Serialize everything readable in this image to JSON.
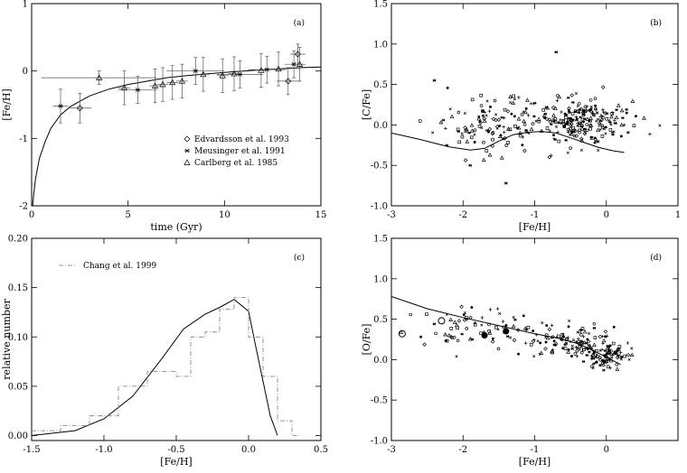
{
  "chart_data": [
    {
      "id": "a",
      "type": "scatter",
      "panel_label": "(a)",
      "xlabel": "time (Gyr)",
      "ylabel": "[Fe/H]",
      "xlim": [
        0,
        15
      ],
      "ylim": [
        -2,
        1
      ],
      "xticks": [
        0,
        5,
        10,
        15
      ],
      "yticks": [
        -2,
        -1,
        0,
        1
      ],
      "legend_position": "bottom-right",
      "series": [
        {
          "name": "Edvardsson et al. 1993",
          "marker": "diamond",
          "points": [
            [
              2.5,
              -0.55
            ],
            [
              13.3,
              -0.15
            ],
            [
              13.8,
              0.25
            ]
          ],
          "xerr": [
            0.6,
            0.6,
            0.4
          ],
          "yerr": [
            0.22,
            0.2,
            0.15
          ]
        },
        {
          "name": "Meusinger et al. 1991",
          "marker": "asterisk",
          "points": [
            [
              1.5,
              -0.52
            ],
            [
              5.5,
              -0.28
            ],
            [
              8.5,
              0.0
            ],
            [
              10.8,
              -0.05
            ],
            [
              12.2,
              0.02
            ],
            [
              13.6,
              0.1
            ]
          ],
          "xerr": [
            0.4,
            1.0,
            1.5,
            1.2,
            1.0,
            0.5
          ],
          "yerr": [
            0.25,
            0.2,
            0.2,
            0.2,
            0.2,
            0.2
          ]
        },
        {
          "name": "Carlberg et al. 1985",
          "marker": "triangle",
          "points": [
            [
              3.5,
              -0.1
            ],
            [
              4.8,
              -0.25
            ],
            [
              6.4,
              -0.22
            ],
            [
              6.8,
              -0.2
            ],
            [
              7.3,
              -0.17
            ],
            [
              7.8,
              -0.15
            ],
            [
              8.9,
              -0.05
            ],
            [
              9.9,
              -0.07
            ],
            [
              10.5,
              -0.04
            ],
            [
              11.9,
              0.01
            ],
            [
              12.8,
              0.03
            ],
            [
              13.9,
              0.1
            ]
          ],
          "xerr": [
            3.0,
            0.3,
            0.3,
            0.3,
            0.3,
            0.3,
            0.3,
            0.3,
            0.3,
            0.3,
            0.3,
            0.3
          ],
          "yerr": [
            0.1,
            0.25,
            0.25,
            0.25,
            0.25,
            0.25,
            0.25,
            0.25,
            0.25,
            0.25,
            0.25,
            0.25
          ]
        }
      ],
      "model_curve": [
        [
          0.05,
          -2.0
        ],
        [
          0.1,
          -1.85
        ],
        [
          0.2,
          -1.6
        ],
        [
          0.4,
          -1.3
        ],
        [
          0.7,
          -1.05
        ],
        [
          1.0,
          -0.85
        ],
        [
          1.5,
          -0.65
        ],
        [
          2.0,
          -0.53
        ],
        [
          3.0,
          -0.37
        ],
        [
          4.0,
          -0.27
        ],
        [
          5.0,
          -0.2
        ],
        [
          6.0,
          -0.15
        ],
        [
          7.0,
          -0.1
        ],
        [
          8.0,
          -0.07
        ],
        [
          10.0,
          -0.02
        ],
        [
          12.0,
          0.02
        ],
        [
          14.0,
          0.05
        ],
        [
          15.0,
          0.06
        ]
      ]
    },
    {
      "id": "b",
      "type": "scatter",
      "panel_label": "(b)",
      "xlabel": "[Fe/H]",
      "ylabel": "[C/Fe]",
      "xlim": [
        -3,
        1
      ],
      "ylim": [
        -1,
        1.5
      ],
      "xticks": [
        -3,
        -2,
        -1,
        0,
        1
      ],
      "yticks": [
        -1.0,
        -0.5,
        0.0,
        0.5,
        1.0,
        1.5
      ],
      "cloud_groups": [
        {
          "cx": -1.6,
          "cy": 0.0,
          "sx": 0.4,
          "sy": 0.18,
          "n": 110
        },
        {
          "cx": -0.4,
          "cy": 0.05,
          "sx": 0.35,
          "sy": 0.15,
          "n": 220
        }
      ],
      "extra_points": [
        [
          -0.7,
          0.9
        ],
        [
          -2.6,
          0.05
        ],
        [
          -1.4,
          -0.72
        ],
        [
          -1.9,
          -0.5
        ],
        [
          -2.4,
          0.55
        ]
      ],
      "model_curve": [
        [
          -3.0,
          -0.1
        ],
        [
          -2.6,
          -0.18
        ],
        [
          -2.2,
          -0.27
        ],
        [
          -1.9,
          -0.31
        ],
        [
          -1.7,
          -0.29
        ],
        [
          -1.5,
          -0.2
        ],
        [
          -1.3,
          -0.12
        ],
        [
          -1.1,
          -0.09
        ],
        [
          -0.9,
          -0.08
        ],
        [
          -0.7,
          -0.1
        ],
        [
          -0.5,
          -0.16
        ],
        [
          -0.3,
          -0.22
        ],
        [
          -0.1,
          -0.28
        ],
        [
          0.1,
          -0.32
        ],
        [
          0.25,
          -0.34
        ]
      ]
    },
    {
      "id": "c",
      "type": "line",
      "panel_label": "(c)",
      "xlabel": "[Fe/H]",
      "ylabel": "relative number",
      "xlim": [
        -1.5,
        0.5
      ],
      "ylim": [
        -0.005,
        0.2
      ],
      "xticks": [
        -1.5,
        -1.0,
        -0.5,
        0.0,
        0.5
      ],
      "yticks": [
        0.0,
        0.05,
        0.1,
        0.15,
        0.2
      ],
      "legend_position": "top-left",
      "series": [
        {
          "name": "Chang et al. 1999",
          "style": "dash-dot histogram",
          "bins": [
            [
              -1.5,
              -1.3,
              0.005
            ],
            [
              -1.3,
              -1.1,
              0.01
            ],
            [
              -1.1,
              -0.9,
              0.02
            ],
            [
              -0.9,
              -0.7,
              0.05
            ],
            [
              -0.7,
              -0.5,
              0.065
            ],
            [
              -0.5,
              -0.4,
              0.06
            ],
            [
              -0.4,
              -0.3,
              0.1
            ],
            [
              -0.3,
              -0.2,
              0.105
            ],
            [
              -0.2,
              -0.1,
              0.128
            ],
            [
              -0.1,
              0.0,
              0.14
            ],
            [
              0.0,
              0.1,
              0.1
            ],
            [
              0.1,
              0.2,
              0.06
            ],
            [
              0.2,
              0.3,
              0.015
            ],
            [
              0.3,
              0.35,
              0.0
            ]
          ]
        }
      ],
      "model_curve": [
        [
          -1.5,
          0.0
        ],
        [
          -1.2,
          0.005
        ],
        [
          -1.0,
          0.017
        ],
        [
          -0.8,
          0.04
        ],
        [
          -0.6,
          0.078
        ],
        [
          -0.45,
          0.108
        ],
        [
          -0.3,
          0.123
        ],
        [
          -0.2,
          0.13
        ],
        [
          -0.1,
          0.138
        ],
        [
          0.0,
          0.126
        ],
        [
          0.05,
          0.09
        ],
        [
          0.1,
          0.055
        ],
        [
          0.15,
          0.02
        ],
        [
          0.2,
          0.0
        ]
      ]
    },
    {
      "id": "d",
      "type": "scatter",
      "panel_label": "(d)",
      "xlabel": "[Fe/H]",
      "ylabel": "[O/Fe]",
      "xlim": [
        -3,
        1
      ],
      "ylim": [
        -1,
        1.5
      ],
      "xticks": [
        -3,
        -2,
        -1,
        0
      ],
      "yticks": [
        -1.0,
        -0.5,
        0.0,
        0.5,
        1.0,
        1.5
      ],
      "cloud_groups": [
        {
          "cx": -1.8,
          "cy": 0.4,
          "sx": 0.5,
          "sy": 0.12,
          "n": 70
        },
        {
          "cx": -0.5,
          "cy": 0.2,
          "sx": 0.3,
          "sy": 0.1,
          "n": 110
        },
        {
          "cx": 0.0,
          "cy": 0.05,
          "sx": 0.15,
          "sy": 0.08,
          "n": 80
        }
      ],
      "large_markers": [
        [
          -2.85,
          0.32,
          "open"
        ],
        [
          -2.3,
          0.48,
          "open"
        ],
        [
          -1.7,
          0.3,
          "filled"
        ],
        [
          -1.4,
          0.35,
          "filled"
        ]
      ],
      "model_curve": [
        [
          -3.0,
          0.78
        ],
        [
          -2.5,
          0.63
        ],
        [
          -2.0,
          0.52
        ],
        [
          -1.5,
          0.42
        ],
        [
          -1.0,
          0.32
        ],
        [
          -0.7,
          0.27
        ],
        [
          -0.4,
          0.2
        ],
        [
          -0.2,
          0.12
        ],
        [
          0.0,
          0.03
        ],
        [
          0.2,
          -0.06
        ]
      ]
    }
  ]
}
